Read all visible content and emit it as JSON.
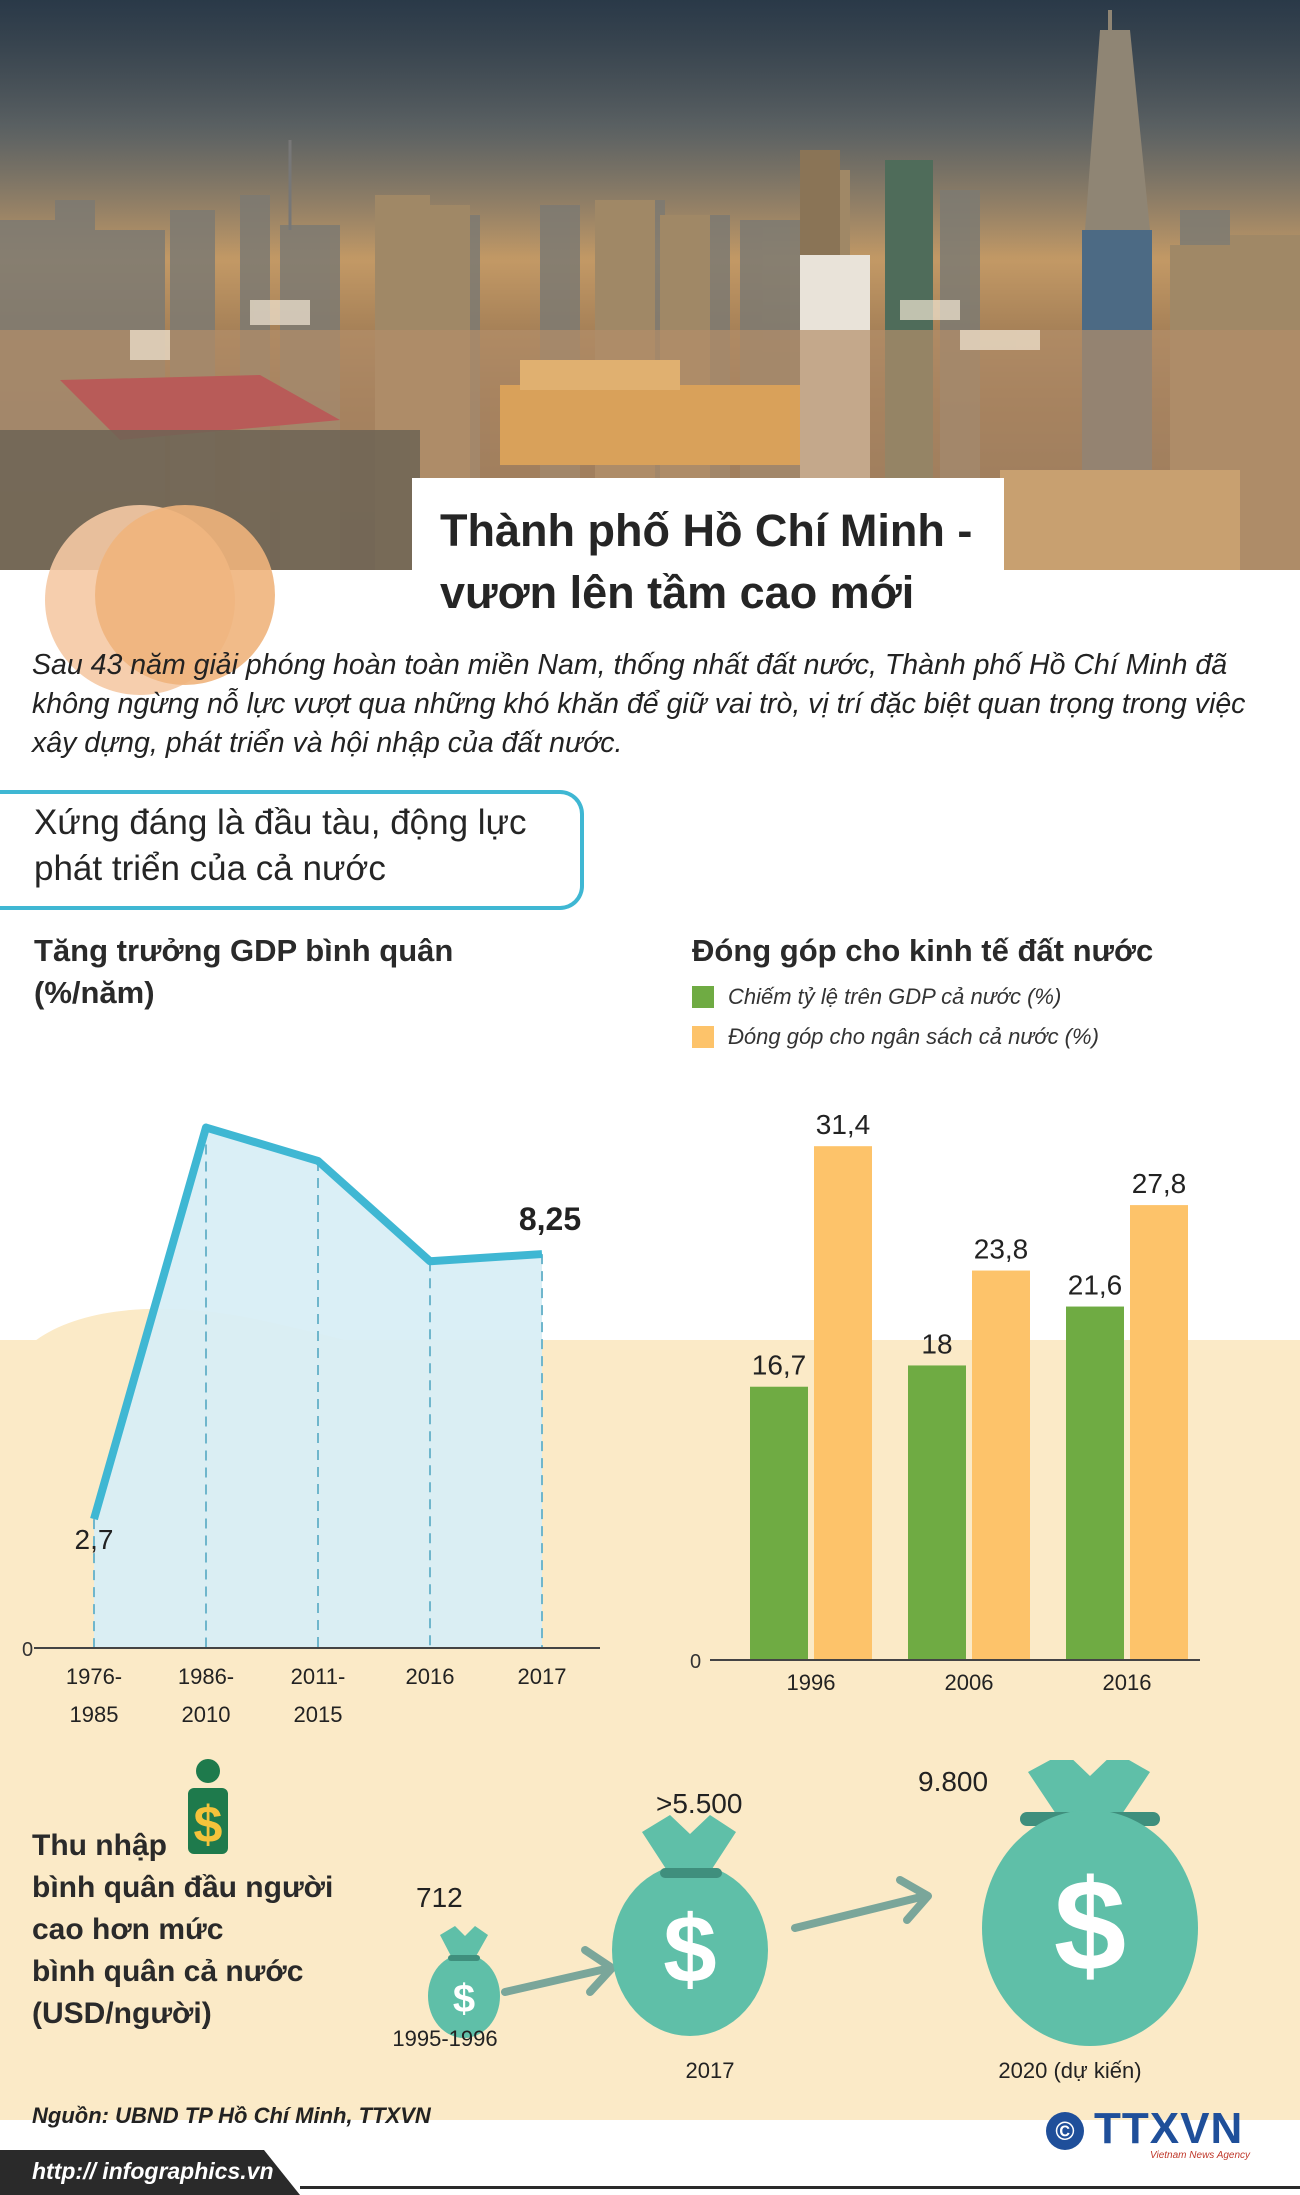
{
  "hero": {
    "title_line1": "Thành phố Hồ Chí Minh -",
    "title_line2": "vươn lên tầm cao mới"
  },
  "intro": "Sau 43 năm giải phóng hoàn toàn miền Nam, thống nhất đất nước, Thành phố Hồ Chí Minh đã không ngừng nỗ lực vượt qua những khó khăn để giữ vai trò, vị trí đặc biệt quan trọng trong việc xây dựng, phát triển và hội nhập của đất nước.",
  "section": {
    "title_line1": "Xứng đáng là đầu tàu, động lực",
    "title_line2": "phát triển của cả nước"
  },
  "colors": {
    "accent_blue": "#3fb7d3",
    "bar_green": "#6fab43",
    "bar_orange": "#fdc36a",
    "money_bag": "#5fbfa8",
    "cream": "#fbeac7"
  },
  "chart_data": [
    {
      "type": "area",
      "title": "Tăng trưởng GDP bình quân",
      "title_line2": "(%/năm)",
      "categories": [
        "1976-\n1985",
        "1986-\n2010",
        "2011-\n2015",
        "2016",
        "2017"
      ],
      "tick_labels": [
        [
          "1976-",
          "1985"
        ],
        [
          "1986-",
          "2010"
        ],
        [
          "2011-",
          "2015"
        ],
        [
          "2016",
          ""
        ],
        [
          "2017",
          ""
        ]
      ],
      "values": [
        2.7,
        10.9,
        10.2,
        8.1,
        8.25
      ],
      "value_labels": [
        "2,7",
        "",
        "",
        "",
        "8,25"
      ],
      "y_zero_label": "0",
      "ylim": [
        0,
        12
      ]
    },
    {
      "type": "bar",
      "title": "Đóng góp cho kinh tế đất nước",
      "categories": [
        "1996",
        "2006",
        "2016"
      ],
      "series": [
        {
          "name": "Chiếm tỷ lệ trên GDP cả nước (%)",
          "values": [
            16.7,
            18,
            21.6
          ],
          "labels": [
            "16,7",
            "18",
            "21,6"
          ],
          "color": "#6fab43"
        },
        {
          "name": "Đóng góp cho ngân sách cả nước (%)",
          "values": [
            31.4,
            23.8,
            27.8
          ],
          "labels": [
            "31,4",
            "23,8",
            "27,8"
          ],
          "color": "#fdc36a"
        }
      ],
      "y_zero_label": "0",
      "ylim": [
        0,
        33
      ]
    }
  ],
  "income": {
    "title_lines": [
      "Thu nhập",
      "bình quân đầu người",
      "cao hơn mức",
      "bình quân cả nước",
      "(USD/người)"
    ],
    "icon": "person-dollar-icon",
    "items": [
      {
        "value": "712",
        "period": "1995-1996"
      },
      {
        "value": ">5.500",
        "period": "2017"
      },
      {
        "value": "9.800",
        "period": "2020 (dự kiến)"
      }
    ]
  },
  "footer": {
    "source": "Nguồn: UBND TP Hồ Chí Minh, TTXVN",
    "url": "http:// infographics.vn",
    "logo": "TTXVN",
    "logo_sub": "Vietnam News Agency",
    "copyright": "©"
  }
}
